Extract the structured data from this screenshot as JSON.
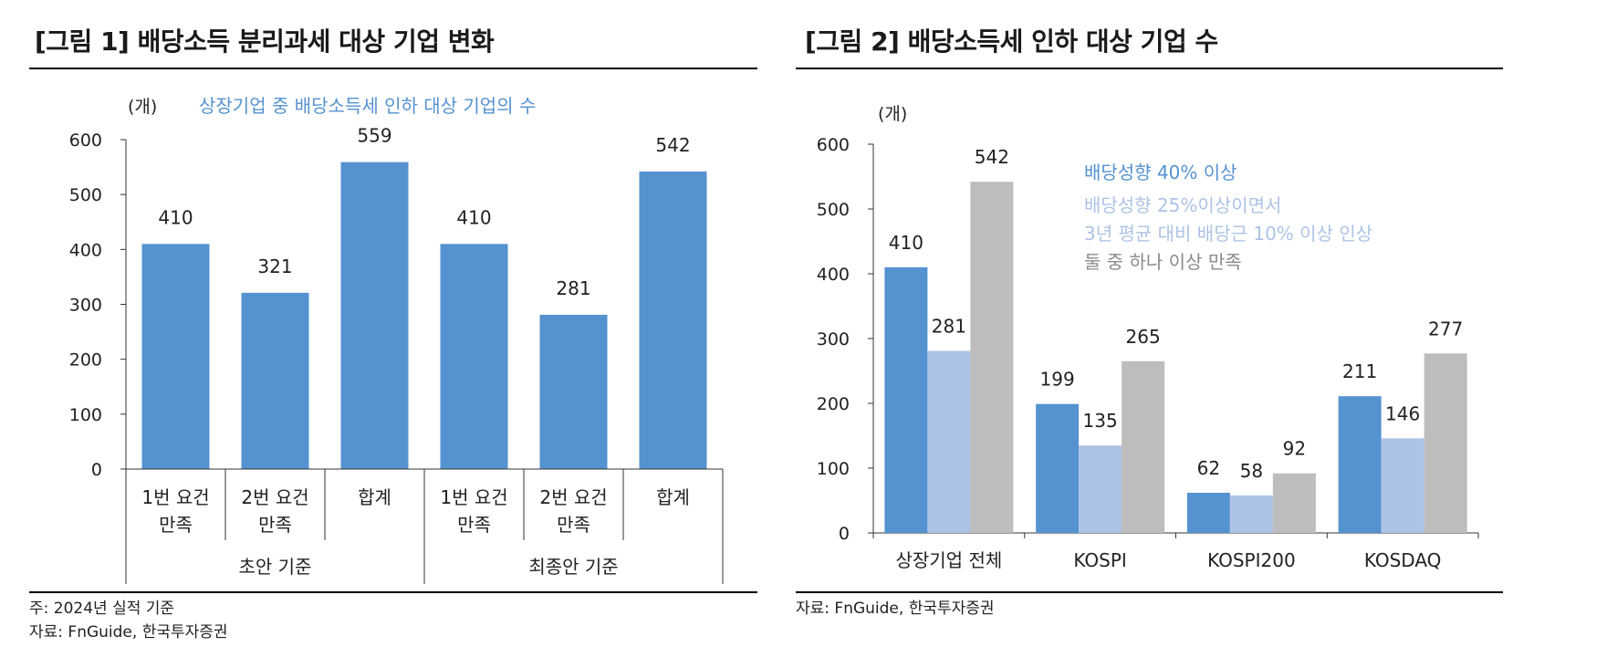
{
  "figure1": {
    "title": "[그림 1] 배당소득 분리과세 대상 기업 변화",
    "unit_label": "(개)",
    "legend_label": "상장기업 중 배당소득세 인하 대상 기업의 수",
    "note": "주: 2024년 실적 기준",
    "source": "자료: FnGuide, 한국투자증권"
  },
  "figure2": {
    "title": "[그림 2] 배당소득세 인하 대상 기업 수",
    "unit_label": "(개)",
    "source": "자료: FnGuide, 한국투자증권"
  },
  "chart_data": [
    {
      "type": "bar",
      "title": "[그림 1] 배당소득 분리과세 대상 기업 변화",
      "ylabel": "(개)",
      "ylim": [
        0,
        600
      ],
      "yticks": [
        0,
        100,
        200,
        300,
        400,
        500,
        600
      ],
      "categories": [
        {
          "line1": "1번 요건",
          "line2": "만족"
        },
        {
          "line1": "2번 요건",
          "line2": "만족"
        },
        {
          "line1": "합계",
          "line2": ""
        },
        {
          "line1": "1번 요건",
          "line2": "만족"
        },
        {
          "line1": "2번 요건",
          "line2": "만족"
        },
        {
          "line1": "합계",
          "line2": ""
        }
      ],
      "groups": [
        "초안 기준",
        "최종안 기준"
      ],
      "series": [
        {
          "name": "상장기업 중 배당소득세 인하 대상 기업의 수",
          "color": "#5592d0",
          "values": [
            410,
            321,
            559,
            410,
            281,
            542
          ]
        }
      ]
    },
    {
      "type": "bar",
      "title": "[그림 2] 배당소득세 인하 대상 기업 수",
      "ylabel": "(개)",
      "ylim": [
        0,
        600
      ],
      "yticks": [
        0,
        100,
        200,
        300,
        400,
        500,
        600
      ],
      "categories": [
        "상장기업 전체",
        "KOSPI",
        "KOSPI200",
        "KOSDAQ"
      ],
      "series": [
        {
          "name": "배당성향 40% 이상",
          "label_lines": [
            "배당성향 40% 이상"
          ],
          "color": "#5592d0",
          "values": [
            410,
            199,
            62,
            211
          ]
        },
        {
          "name": "배당성향 25%이상이면서 3년 평균 대비 배당근 10% 이상 인상",
          "label_lines": [
            "배당성향 25%이상이면서",
            "3년 평균 대비 배당근 10% 이상 인상"
          ],
          "color": "#adc3e6",
          "values": [
            281,
            135,
            58,
            146
          ]
        },
        {
          "name": "둘 중 하나 이상 만족",
          "label_lines": [
            "둘 중 하나 이상 만족"
          ],
          "color": "#bdbdbd",
          "values": [
            542,
            265,
            92,
            277
          ]
        }
      ]
    }
  ]
}
